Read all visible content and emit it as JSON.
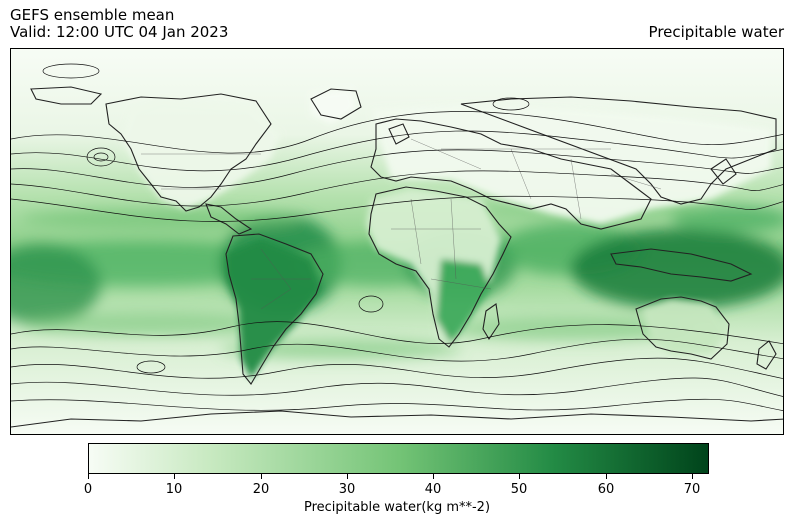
{
  "header": {
    "title_line1": "GEFS ensemble mean",
    "title_line2": "Valid: 12:00 UTC 04 Jan 2023",
    "right_title": "Precipitable water"
  },
  "map": {
    "projection": "Plate Carree (global)",
    "colormap": "Greens",
    "colors": {
      "low": "#f7fcf5",
      "mid": "#74c476",
      "high": "#00441b",
      "coastline": "#222222",
      "borders": "#555555",
      "contours": "#111111"
    }
  },
  "colorbar": {
    "label": "Precipitable water(kg m**-2)",
    "min": 0,
    "max": 72,
    "ticks": [
      0,
      10,
      20,
      30,
      40,
      50,
      60,
      70
    ]
  }
}
